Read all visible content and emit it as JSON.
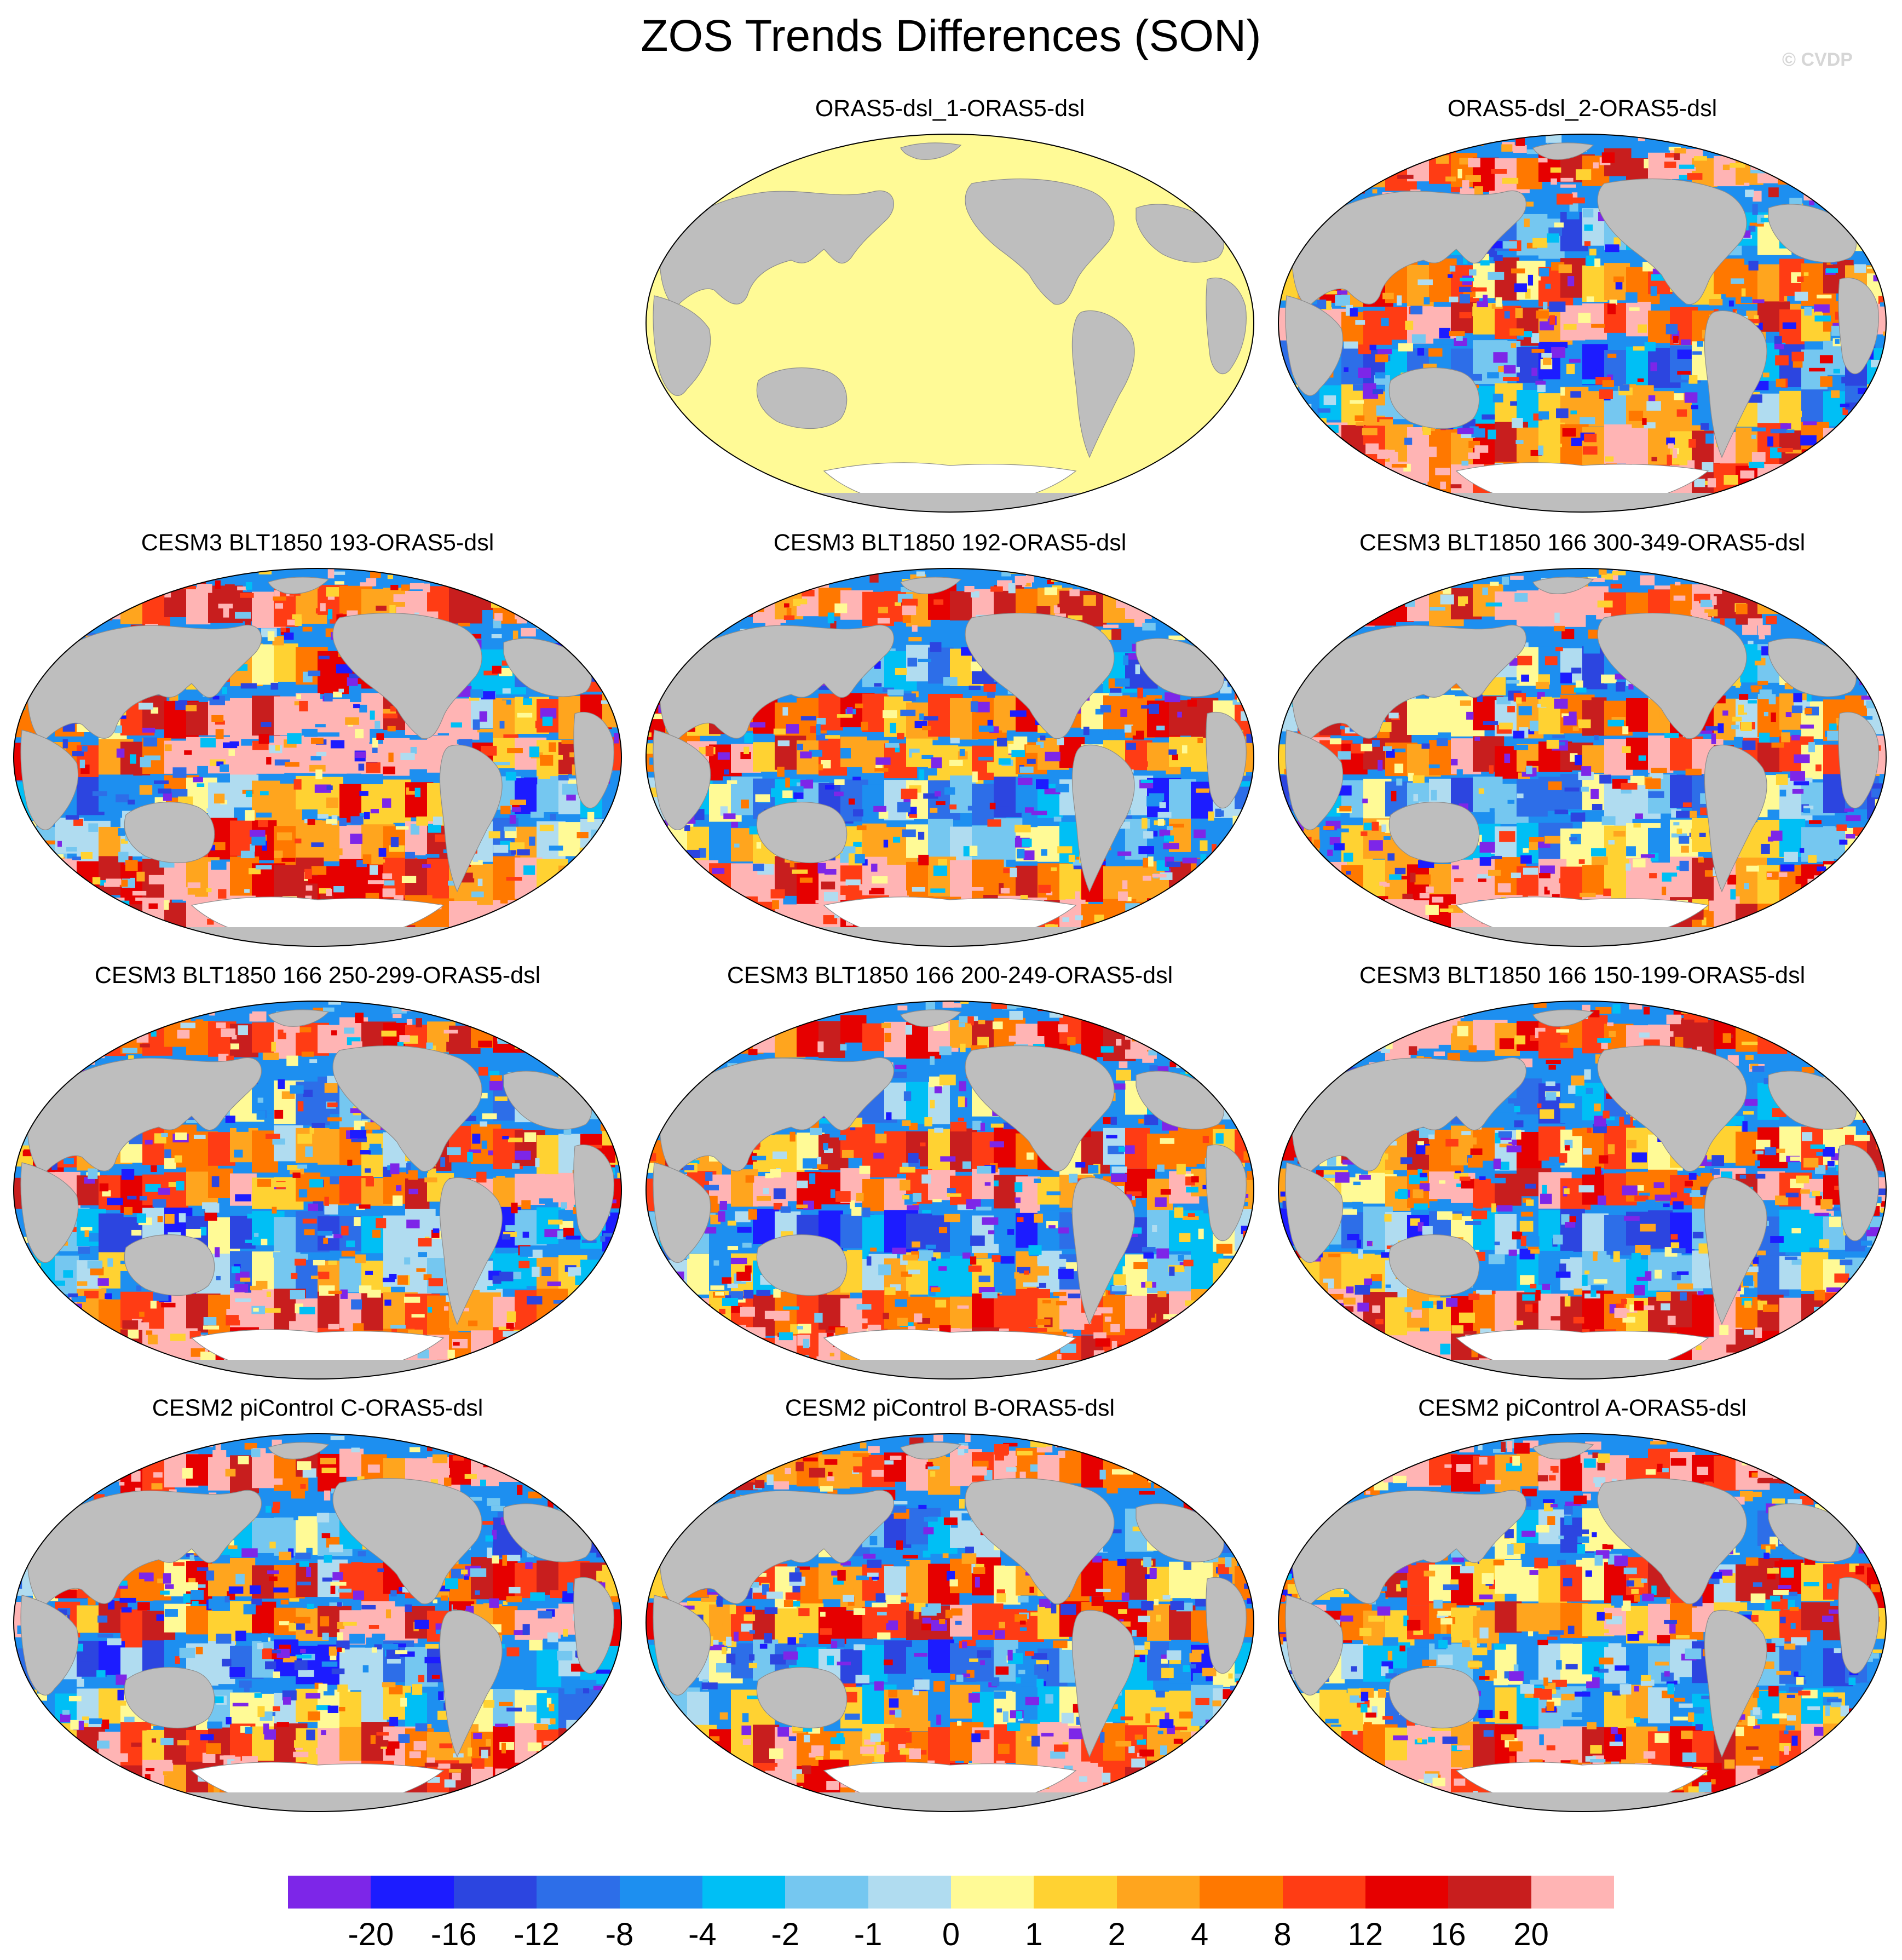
{
  "title": "ZOS Trends Differences (SON)",
  "watermark": "© CVDP",
  "panels": [
    {
      "label": "ORAS5-dsl_1-ORAS5-dsl",
      "fill": "uniform-zero"
    },
    {
      "label": "ORAS5-dsl_2-ORAS5-dsl",
      "fill": "mixed"
    },
    {
      "label": "CESM3 BLT1850 193-ORAS5-dsl",
      "fill": "warm-pacific"
    },
    {
      "label": "CESM3 BLT1850 192-ORAS5-dsl",
      "fill": "mixed"
    },
    {
      "label": "CESM3 BLT1850 166 300-349-ORAS5-dsl",
      "fill": "mixed"
    },
    {
      "label": "CESM3 BLT1850 166 250-299-ORAS5-dsl",
      "fill": "mixed"
    },
    {
      "label": "CESM3 BLT1850 166 200-249-ORAS5-dsl",
      "fill": "mixed"
    },
    {
      "label": "CESM3 BLT1850 166 150-199-ORAS5-dsl",
      "fill": "mixed"
    },
    {
      "label": "CESM2 piControl C-ORAS5-dsl",
      "fill": "mixed"
    },
    {
      "label": "CESM2 piControl B-ORAS5-dsl",
      "fill": "mixed"
    },
    {
      "label": "CESM2 piControl A-ORAS5-dsl",
      "fill": "mixed"
    }
  ],
  "colors": {
    "land": "#bebebe",
    "missing": "#ffffff",
    "zero_fill": "#fffa96"
  },
  "colorbar": {
    "colors": [
      "#7d26e8",
      "#1c1cff",
      "#2c45e0",
      "#2d6ee8",
      "#1d8ff0",
      "#00bff5",
      "#75c7f0",
      "#b0dcf0",
      "#fffa96",
      "#ffd232",
      "#ffa51e",
      "#ff7800",
      "#ff3c14",
      "#e60000",
      "#c81e1e",
      "#ffb4b4"
    ],
    "labels": [
      "-20",
      "-16",
      "-12",
      "-8",
      "-4",
      "-2",
      "-1",
      "0",
      "1",
      "2",
      "4",
      "8",
      "12",
      "16",
      "20"
    ]
  }
}
